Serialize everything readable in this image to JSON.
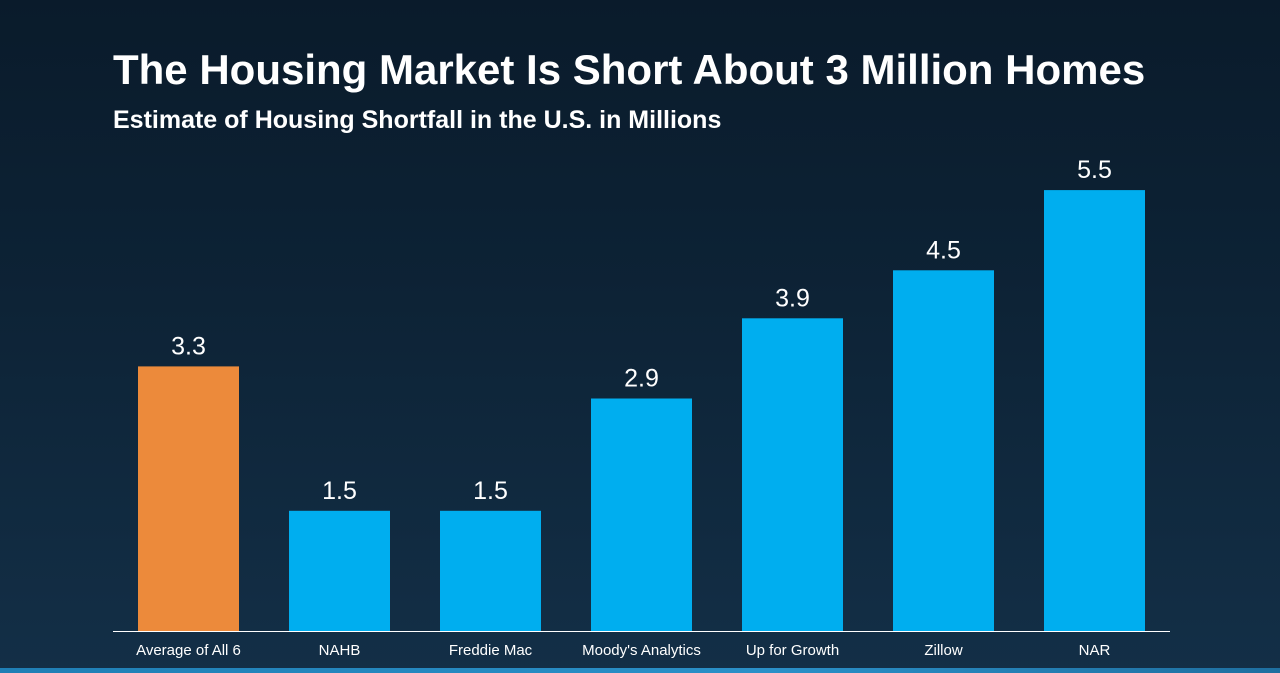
{
  "title": "The Housing Market Is Short About 3 Million Homes",
  "subtitle": "Estimate of Housing Shortfall in the U.S. in Millions",
  "colors": {
    "highlight": "#ec8a3b",
    "bar": "#00aeef",
    "axis": "#ffffff",
    "text": "#ffffff"
  },
  "chart_data": {
    "type": "bar",
    "title": "The Housing Market Is Short About 3 Million Homes",
    "subtitle": "Estimate of Housing Shortfall in the U.S. in Millions",
    "categories": [
      "Average of All 6",
      "NAHB",
      "Freddie Mac",
      "Moody's Analytics",
      "Up for Growth",
      "Zillow",
      "NAR"
    ],
    "values": [
      3.3,
      1.5,
      1.5,
      2.9,
      3.9,
      4.5,
      5.5
    ],
    "value_labels": [
      "3.3",
      "1.5",
      "1.5",
      "2.9",
      "3.9",
      "4.5",
      "5.5"
    ],
    "highlight_index": 0,
    "xlabel": "",
    "ylabel": "",
    "ylim": [
      0,
      6
    ],
    "grid": false,
    "legend": "none"
  }
}
